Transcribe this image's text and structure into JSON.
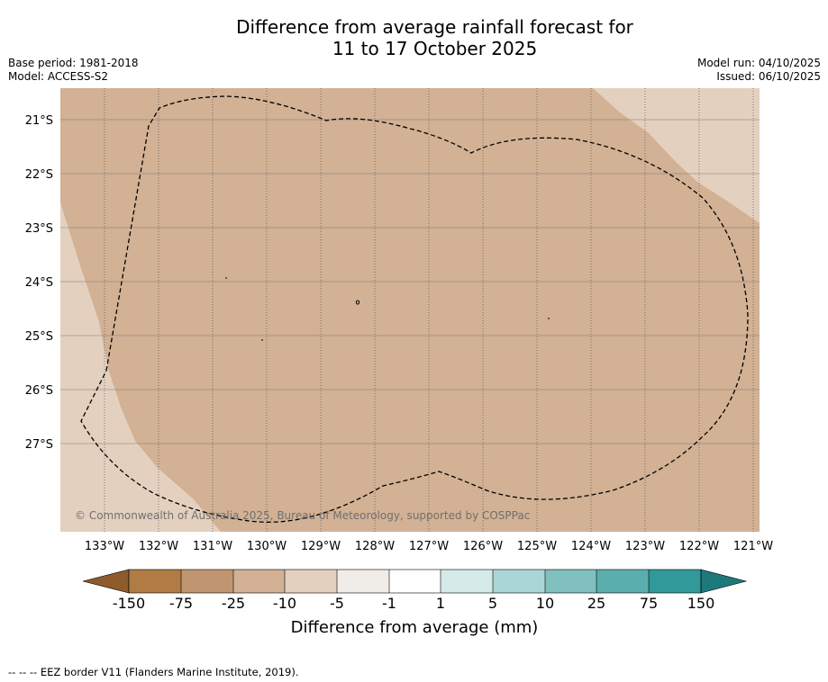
{
  "title": {
    "line1": "Difference from average rainfall forecast for",
    "line2": "11 to 17 October 2025"
  },
  "meta": {
    "base_period": "Base period: 1981-2018",
    "model": "Model: ACCESS-S2",
    "model_run": "Model run: 04/10/2025",
    "issued": "Issued: 06/10/2025"
  },
  "map": {
    "lat_labels": [
      "21°S",
      "22°S",
      "23°S",
      "24°S",
      "25°S",
      "26°S",
      "27°S"
    ],
    "lon_labels": [
      "133°W",
      "132°W",
      "131°W",
      "130°W",
      "129°W",
      "128°W",
      "127°W",
      "126°W",
      "125°W",
      "124°W",
      "123°W",
      "122°W",
      "121°W"
    ],
    "copyright": "© Commonwealth of Australia 2025, Bureau of Meteorology, supported by COSPPac",
    "colors": {
      "main_fill": "#d2b194",
      "light_fill": "#e4d0bf",
      "gridline": "#7a7a7a",
      "eez_border": "#000000"
    }
  },
  "colorbar": {
    "title": "Difference from average (mm)",
    "tick_labels": [
      "-150",
      "-75",
      "-25",
      "-10",
      "-5",
      "-1",
      "1",
      "5",
      "10",
      "25",
      "75",
      "150"
    ],
    "colors": [
      "#8f5b2c",
      "#b07b45",
      "#c09670",
      "#d2b194",
      "#e4d0bf",
      "#f0ede8",
      "#ffffff",
      "#d4ebea",
      "#aad7d6",
      "#80c1c0",
      "#5aaead",
      "#31999a",
      "#1e7a7a"
    ]
  },
  "footnote": "--  --  -- EEZ border V11 (Flanders Marine Institute, 2019)."
}
